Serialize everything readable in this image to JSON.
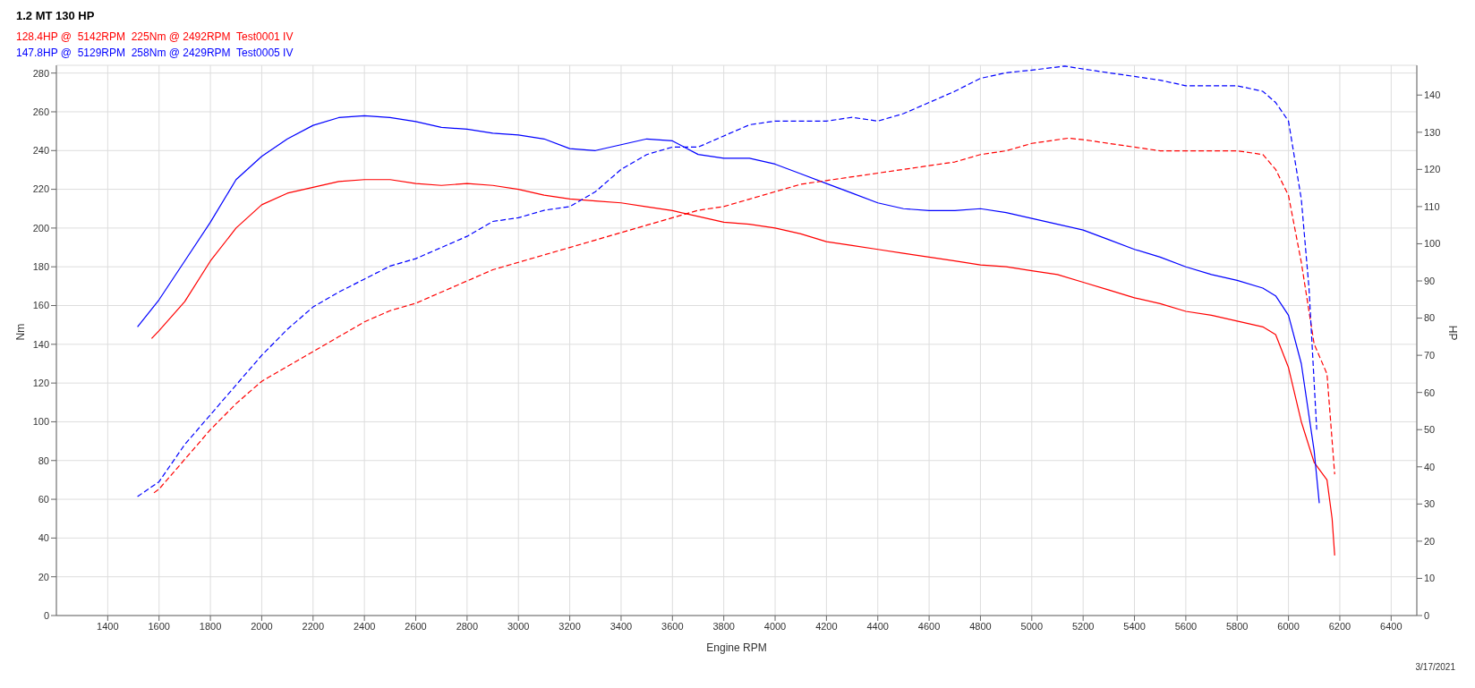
{
  "chart_data": {
    "type": "line",
    "title": "1.2 MT 130 HP",
    "xlabel": "Engine RPM",
    "ylabel": "Nm",
    "y2label": "HP",
    "annotations": [
      "3/17/2021"
    ],
    "legend": "top left",
    "grid": true,
    "marker": "none",
    "xlim": [
      1200,
      6500
    ],
    "xticks": [
      1400,
      1600,
      1800,
      2000,
      2200,
      2400,
      2600,
      2800,
      3000,
      3200,
      3400,
      3600,
      3800,
      4000,
      4200,
      4400,
      4600,
      4800,
      5000,
      5200,
      5400,
      5600,
      5800,
      6000,
      6200,
      6400
    ],
    "ylim": [
      0,
      284
    ],
    "yticks": [
      0,
      20,
      40,
      60,
      80,
      100,
      120,
      140,
      160,
      180,
      200,
      220,
      240,
      260,
      280
    ],
    "y2lim": [
      0,
      148
    ],
    "y2ticks": [
      0,
      10,
      20,
      30,
      40,
      50,
      60,
      70,
      80,
      90,
      100,
      110,
      120,
      130,
      140
    ],
    "series": [
      {
        "name": "128.4HP @  5142RPM  225Nm @ 2492RPM  Test0001 IV",
        "color": "#ff0000",
        "line_style": "solid",
        "x": [
          1571,
          1600,
          1700,
          1800,
          1900,
          2000,
          2100,
          2200,
          2300,
          2400,
          2500,
          2600,
          2700,
          2800,
          2900,
          3000,
          3100,
          3200,
          3300,
          3400,
          3500,
          3600,
          3700,
          3800,
          3900,
          4000,
          4100,
          4200,
          4300,
          4400,
          4500,
          4600,
          4700,
          4800,
          4900,
          5000,
          5100,
          5200,
          5300,
          5400,
          5500,
          5600,
          5700,
          5800,
          5900,
          5950,
          6000,
          6050,
          6100,
          6150,
          6170,
          6180
        ],
        "values": [
          143,
          147,
          162,
          183,
          200,
          212,
          218,
          221,
          224,
          225,
          225,
          223,
          222,
          223,
          222,
          220,
          217,
          215,
          214,
          213,
          211,
          209,
          206,
          203,
          202,
          200,
          197,
          193,
          191,
          189,
          187,
          185,
          183,
          181,
          180,
          178,
          176,
          172,
          168,
          164,
          161,
          157,
          155,
          152,
          149,
          145,
          128,
          100,
          79,
          70,
          50,
          31
        ]
      },
      {
        "name": "147.8HP @  5129RPM  258Nm @ 2429RPM  Test0005 IV",
        "color": "#0000ff",
        "line_style": "solid",
        "x": [
          1516,
          1600,
          1700,
          1800,
          1900,
          2000,
          2100,
          2200,
          2300,
          2400,
          2500,
          2600,
          2700,
          2800,
          2900,
          3000,
          3100,
          3200,
          3300,
          3400,
          3500,
          3600,
          3700,
          3800,
          3900,
          4000,
          4100,
          4200,
          4300,
          4400,
          4500,
          4600,
          4700,
          4800,
          4900,
          5000,
          5100,
          5200,
          5300,
          5400,
          5500,
          5600,
          5700,
          5800,
          5900,
          5950,
          6000,
          6050,
          6100,
          6120
        ],
        "values": [
          149,
          163,
          183,
          203,
          225,
          237,
          246,
          253,
          257,
          258,
          257,
          255,
          252,
          251,
          249,
          248,
          246,
          241,
          240,
          243,
          246,
          245,
          238,
          236,
          236,
          233,
          228,
          223,
          218,
          213,
          210,
          209,
          209,
          210,
          208,
          205,
          202,
          199,
          194,
          189,
          185,
          180,
          176,
          173,
          169,
          165,
          155,
          130,
          85,
          58
        ]
      },
      {
        "color": "#ff0000",
        "axis": "y2",
        "line_style": "dashed",
        "x": [
          1580,
          1600,
          1700,
          1800,
          1900,
          2000,
          2100,
          2200,
          2300,
          2400,
          2500,
          2600,
          2700,
          2800,
          2900,
          3000,
          3100,
          3200,
          3300,
          3400,
          3500,
          3600,
          3700,
          3800,
          3900,
          4000,
          4100,
          4200,
          4300,
          4400,
          4500,
          4600,
          4700,
          4800,
          4900,
          5000,
          5142,
          5200,
          5300,
          5400,
          5500,
          5600,
          5700,
          5800,
          5900,
          5950,
          6000,
          6050,
          6100,
          6150,
          6180
        ],
        "values": [
          33,
          34,
          42,
          50,
          57,
          63,
          67,
          71,
          75,
          79,
          82,
          84,
          87,
          90,
          93,
          95,
          97,
          99,
          101,
          103,
          105,
          107,
          109,
          110,
          112,
          114,
          116,
          117,
          118,
          119,
          120,
          121,
          122,
          124,
          125,
          127,
          128.4,
          128,
          127,
          126,
          125,
          125,
          125,
          125,
          124,
          120,
          113,
          95,
          73,
          65,
          38
        ]
      },
      {
        "color": "#0000ff",
        "axis": "y2",
        "line_style": "dashed",
        "x": [
          1516,
          1600,
          1700,
          1800,
          1900,
          2000,
          2100,
          2200,
          2300,
          2400,
          2500,
          2600,
          2700,
          2800,
          2900,
          3000,
          3100,
          3200,
          3300,
          3400,
          3500,
          3600,
          3700,
          3800,
          3900,
          4000,
          4100,
          4200,
          4300,
          4400,
          4500,
          4600,
          4700,
          4800,
          4900,
          5000,
          5129,
          5200,
          5300,
          5400,
          5500,
          5600,
          5700,
          5800,
          5900,
          5950,
          6000,
          6050,
          6080,
          6110
        ],
        "values": [
          32,
          36,
          46,
          54,
          62,
          70,
          77,
          83,
          87,
          90.5,
          94,
          96,
          99,
          102,
          106,
          107,
          109,
          110,
          114,
          120,
          124,
          126,
          126,
          129,
          132,
          133,
          133,
          133,
          134,
          133,
          135,
          138,
          141,
          144.5,
          146,
          146.7,
          147.8,
          147,
          146,
          145,
          144,
          142.5,
          142.5,
          142.5,
          141,
          138,
          133,
          112,
          88,
          50
        ]
      }
    ]
  }
}
